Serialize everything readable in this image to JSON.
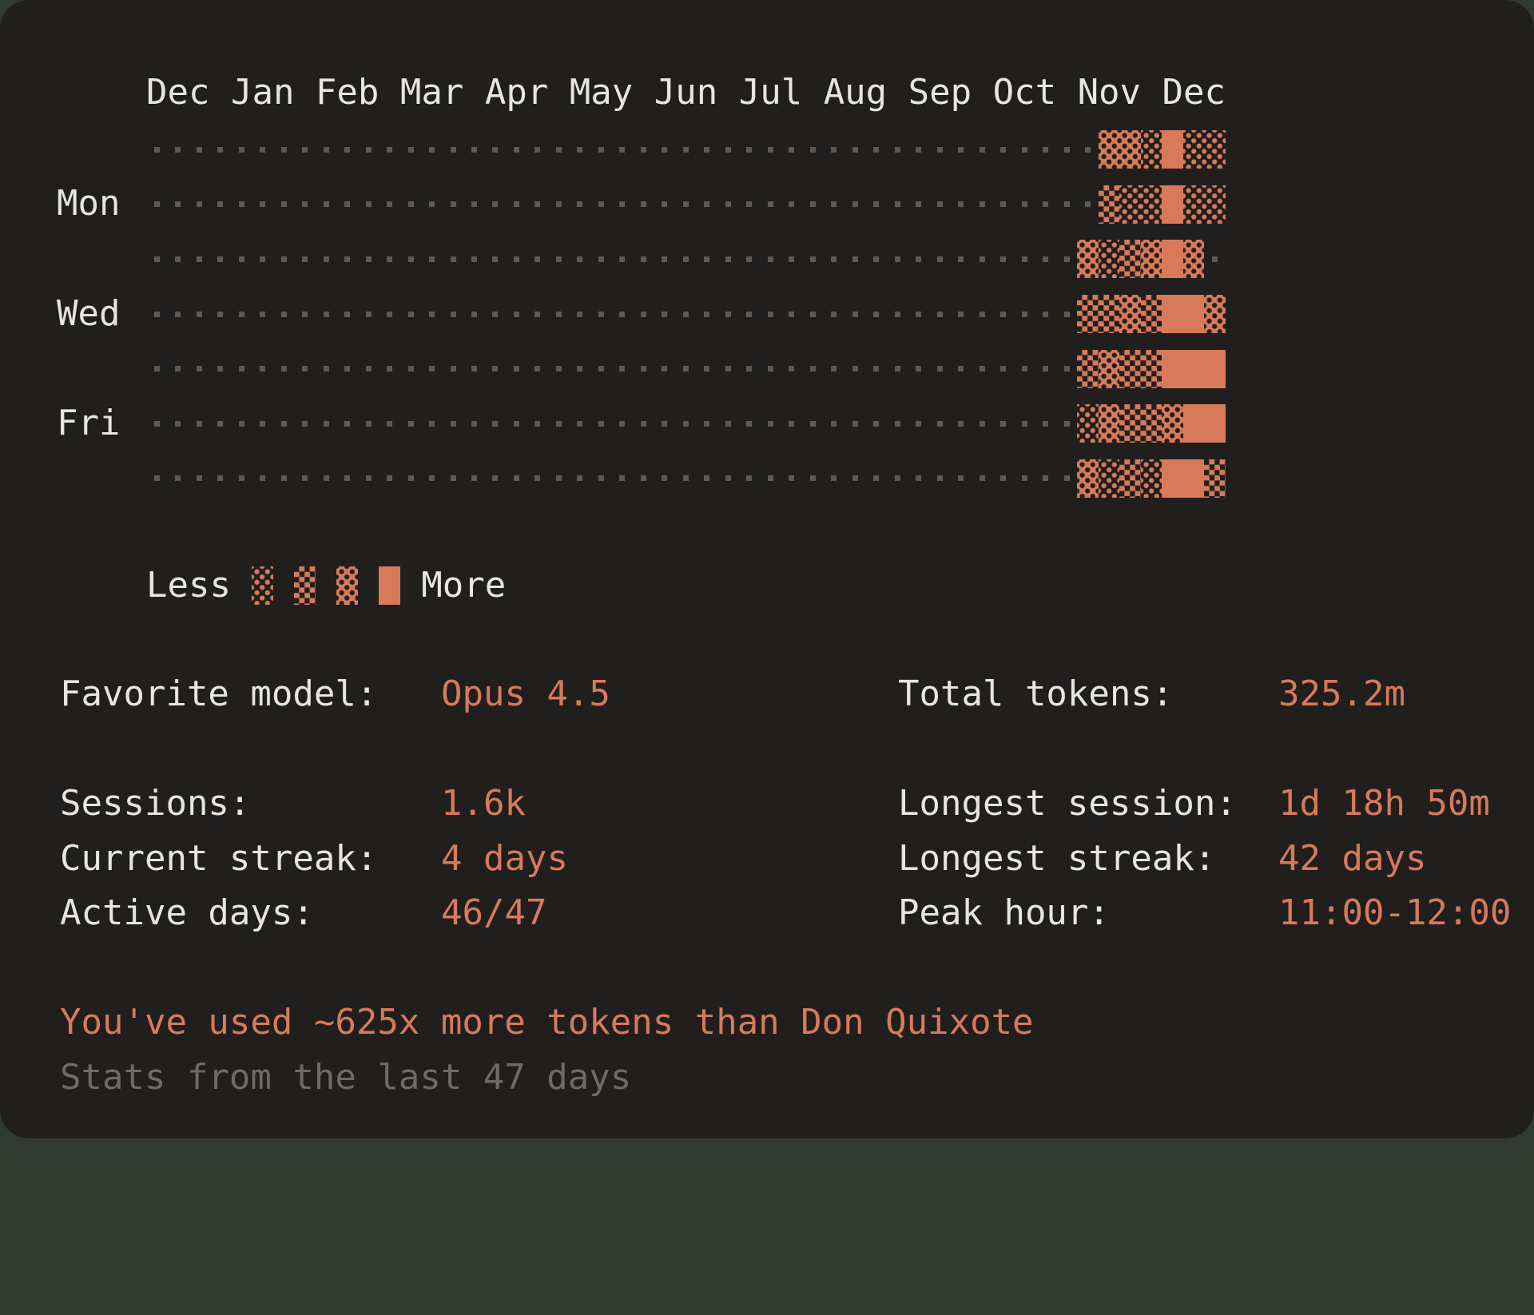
{
  "card": {
    "months_row": "Dec Jan Feb Mar Apr May Jun Jul Aug Sep Oct Nov Dec",
    "day_labels": [
      "Mon",
      "Wed",
      "Fri"
    ],
    "legend": {
      "less_label": "Less",
      "more_label": "More"
    },
    "stats_left": [
      {
        "label": "Favorite model:",
        "value": "Opus 4.5"
      },
      {
        "label": "Sessions:",
        "value": "1.6k"
      },
      {
        "label": "Current streak:",
        "value": "4 days"
      },
      {
        "label": "Active days:",
        "value": "46/47"
      }
    ],
    "stats_right": [
      {
        "label": "Total tokens:",
        "value": "325.2m"
      },
      {
        "label": "Longest session:",
        "value": "1d 18h 50m"
      },
      {
        "label": "Longest streak:",
        "value": "42 days"
      },
      {
        "label": "Peak hour:",
        "value": "11:00-12:00"
      }
    ],
    "footer": {
      "comparison": "You've used ~625x more tokens than Don Quixote",
      "range": "Stats from the last 47 days"
    }
  },
  "chart_data": {
    "type": "heatmap",
    "title": "",
    "x_labels": [
      "Dec",
      "Jan",
      "Feb",
      "Mar",
      "Apr",
      "May",
      "Jun",
      "Jul",
      "Aug",
      "Sep",
      "Oct",
      "Nov",
      "Dec"
    ],
    "visible_row_labels": {
      "row1": "Mon",
      "row3": "Wed",
      "row5": "Fri"
    },
    "total_columns": 51,
    "leading_empty_columns": 44,
    "level_meaning": {
      "0": "no activity (dot)",
      "1": "light",
      "2": "medium",
      "3": "dark",
      "4": "full"
    },
    "rows_last7_columns": [
      "0331411",
      "0211411",
      "3123430",
      "2232443",
      "2322444",
      "1322344",
      "3121442"
    ],
    "legend_levels": [
      1,
      2,
      3,
      4
    ],
    "colors": {
      "accent": "#d87a5a",
      "empty_dot": "#5d5a56",
      "card_background": "#201f1e",
      "text": "#e7e5e2",
      "muted_text": "#6e6a66"
    }
  }
}
